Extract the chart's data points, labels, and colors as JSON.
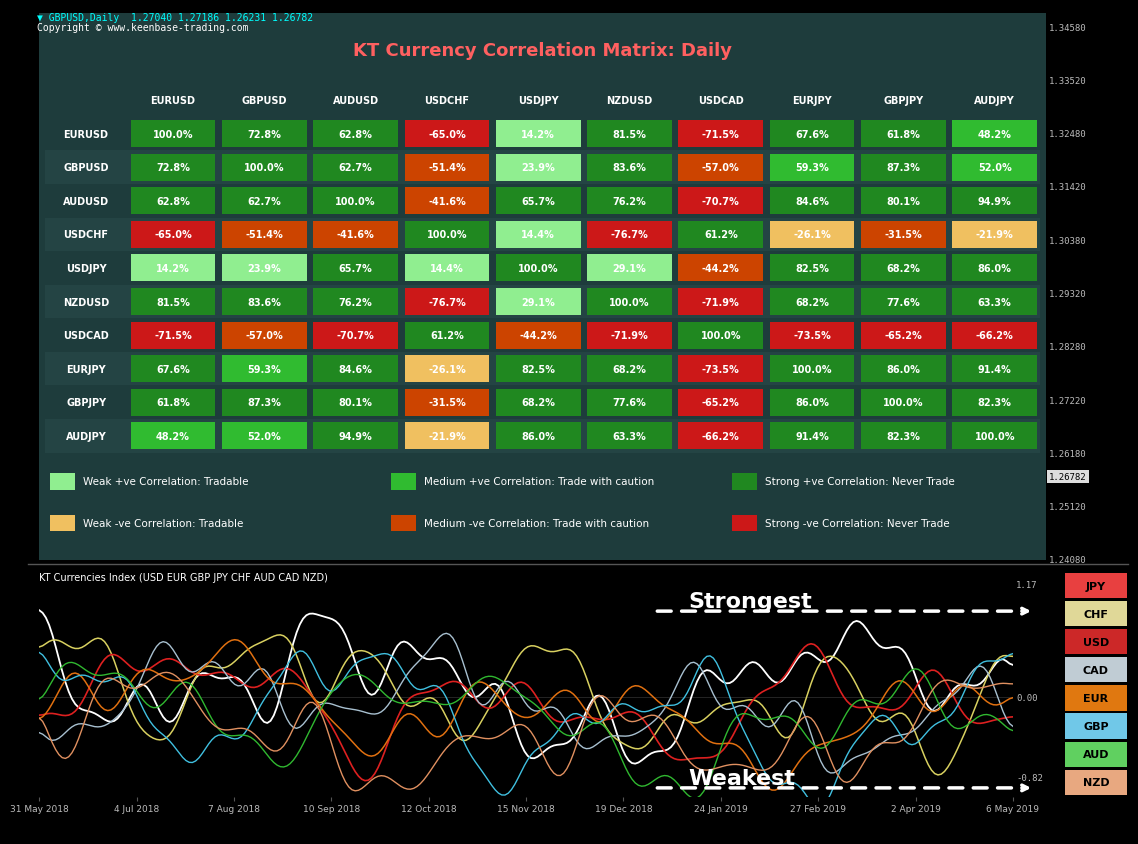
{
  "title": "KT Currency Correlation Matrix: Daily",
  "header_text": "GBPUSD,Daily  1.27040 1.27186 1.26231 1.26782",
  "copyright": "Copyright © www.keenbase-trading.com",
  "col_labels": [
    "EURUSD",
    "GBPUSD",
    "AUDUSD",
    "USDCHF",
    "USDJPY",
    "NZDUSD",
    "USDCAD",
    "EURJPY",
    "GBPJPY",
    "AUDJPY"
  ],
  "row_labels": [
    "EURUSD",
    "GBPUSD",
    "AUDUSD",
    "USDCHF",
    "USDJPY",
    "NZDUSD",
    "USDCAD",
    "EURJPY",
    "GBPJPY",
    "AUDJPY"
  ],
  "matrix": [
    [
      100.0,
      72.8,
      62.8,
      -65.0,
      14.2,
      81.5,
      -71.5,
      67.6,
      61.8,
      48.2
    ],
    [
      72.8,
      100.0,
      62.7,
      -51.4,
      23.9,
      83.6,
      -57.0,
      59.3,
      87.3,
      52.0
    ],
    [
      62.8,
      62.7,
      100.0,
      -41.6,
      65.7,
      76.2,
      -70.7,
      84.6,
      80.1,
      94.9
    ],
    [
      -65.0,
      -51.4,
      -41.6,
      100.0,
      14.4,
      -76.7,
      61.2,
      -26.1,
      -31.5,
      -21.9
    ],
    [
      14.2,
      23.9,
      65.7,
      14.4,
      100.0,
      29.1,
      -44.2,
      82.5,
      68.2,
      86.0
    ],
    [
      81.5,
      83.6,
      76.2,
      -76.7,
      29.1,
      100.0,
      -71.9,
      68.2,
      77.6,
      63.3
    ],
    [
      -71.5,
      -57.0,
      -70.7,
      61.2,
      -44.2,
      -71.9,
      100.0,
      -73.5,
      -65.2,
      -66.2
    ],
    [
      67.6,
      59.3,
      84.6,
      -26.1,
      82.5,
      68.2,
      -73.5,
      100.0,
      86.0,
      91.4
    ],
    [
      61.8,
      87.3,
      80.1,
      -31.5,
      68.2,
      77.6,
      -65.2,
      86.0,
      100.0,
      82.3
    ],
    [
      48.2,
      52.0,
      94.9,
      -21.9,
      86.0,
      63.3,
      -66.2,
      91.4,
      82.3,
      100.0
    ]
  ],
  "right_axis_labels_upper": [
    "1.34580",
    "1.33520",
    "1.32480",
    "1.31420",
    "1.30380",
    "1.29320",
    "1.28280",
    "1.27220",
    "1.26180",
    "1.25120",
    "1.24080"
  ],
  "current_price": "1.26782",
  "date_labels": [
    "31 May 2018",
    "4 Jul 2018",
    "7 Aug 2018",
    "10 Sep 2018",
    "12 Oct 2018",
    "15 Nov 2018",
    "19 Dec 2018",
    "24 Jan 2019",
    "27 Feb 2019",
    "2 Apr 2019",
    "6 May 2019"
  ],
  "currency_labels": [
    "JPY",
    "CHF",
    "USD",
    "CAD",
    "EUR",
    "GBP",
    "AUD",
    "NZD"
  ],
  "currency_colors": [
    "#e84040",
    "#e0d898",
    "#cc2828",
    "#c0ccd4",
    "#e07810",
    "#70c8e8",
    "#60d060",
    "#e8a880"
  ],
  "chart_title": "KT Currencies Index (USD EUR GBP JPY CHF AUD CAD NZD)",
  "line_colors": [
    "#ffffff",
    "#e0d060",
    "#cc2828",
    "#a0b8c8",
    "#e07820",
    "#50c0e0",
    "#40c040",
    "#e09060"
  ],
  "panel_bg": "#1e3c3c",
  "table_header_bg": "#1e3c3c"
}
